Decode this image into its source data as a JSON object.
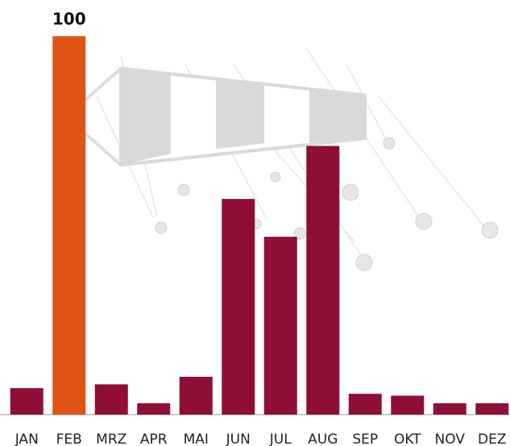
{
  "chart_data": {
    "type": "bar",
    "categories": [
      "JAN",
      "FEB",
      "MRZ",
      "APR",
      "MAI",
      "JUN",
      "JUL",
      "AUG",
      "SEP",
      "OKT",
      "NOV",
      "DEZ"
    ],
    "values": [
      7,
      100,
      8,
      3,
      10,
      57,
      47,
      71,
      5.5,
      5,
      3,
      3
    ],
    "value_labels": [
      null,
      "100",
      null,
      null,
      null,
      null,
      null,
      null,
      null,
      null,
      null,
      null
    ],
    "colors": [
      "#8e0e36",
      "#e05414",
      "#8e0e36",
      "#8e0e36",
      "#8e0e36",
      "#8e0e36",
      "#8e0e36",
      "#8e0e36",
      "#8e0e36",
      "#8e0e36",
      "#8e0e36",
      "#8e0e36"
    ],
    "ylim": [
      0,
      100
    ]
  }
}
